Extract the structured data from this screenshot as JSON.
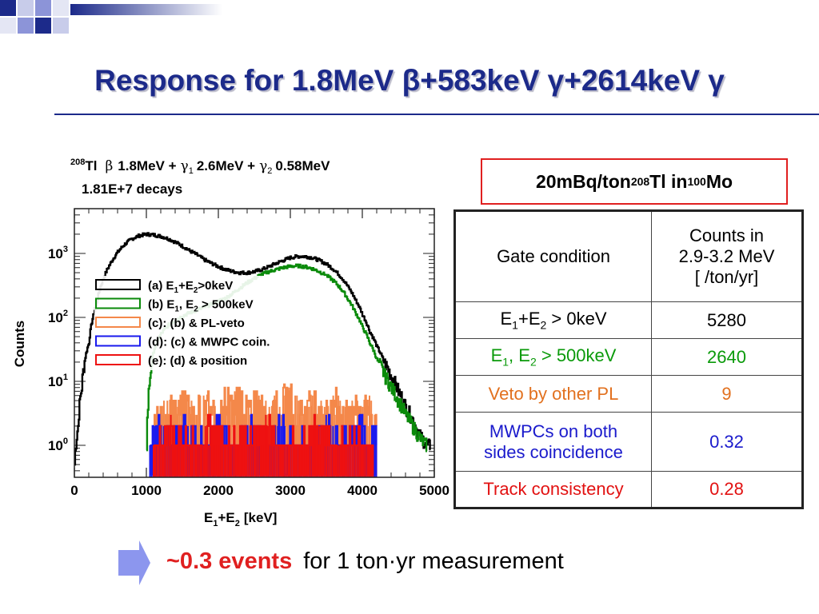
{
  "slide": {
    "title": "Response for 1.8MeV β+583keV γ+2614keV γ"
  },
  "chart_data": {
    "type": "line",
    "header_line1": {
      "iso": "208",
      "element": "Tl",
      "beta": "β",
      "beta_e": "1.8MeV +",
      "g1": "γ",
      "g1_sub": "1",
      "g1_e": "2.6MeV +",
      "g2": "γ",
      "g2_sub": "2",
      "g2_e": "0.58MeV"
    },
    "header_line2": "1.81E+7 decays",
    "xlabel_main": "E",
    "xlabel_sub1": "1",
    "xlabel_plus": "+E",
    "xlabel_sub2": "2",
    "xlabel_unit": "[keV]",
    "ylabel": "Counts",
    "xlim": [
      0,
      5000
    ],
    "ylim_log10": [
      -0.5,
      3.7
    ],
    "y_scale": "log",
    "x_ticks": [
      "0",
      "1000",
      "2000",
      "3000",
      "4000",
      "5000"
    ],
    "x_tick_values": [
      0,
      1000,
      2000,
      3000,
      4000,
      5000
    ],
    "y_ticks": [
      {
        "base": "10",
        "exp": "0",
        "value": 1
      },
      {
        "base": "10",
        "exp": "1",
        "value": 10
      },
      {
        "base": "10",
        "exp": "2",
        "value": 100
      },
      {
        "base": "10",
        "exp": "3",
        "value": 1000
      }
    ],
    "legend_placement": "upper-center",
    "series": [
      {
        "label": "(a) E1+E2>0keV",
        "color": "#000000",
        "x": [
          0,
          50,
          100,
          200,
          300,
          400,
          500,
          600,
          700,
          800,
          900,
          1000,
          1100,
          1200,
          1300,
          1400,
          1500,
          1600,
          1700,
          1800,
          1900,
          2000,
          2100,
          2200,
          2300,
          2400,
          2500,
          2600,
          2700,
          2800,
          2900,
          3000,
          3100,
          3200,
          3300,
          3400,
          3500,
          3600,
          3700,
          3800,
          3900,
          4000,
          4100,
          4200,
          4300,
          4400,
          4500,
          4600,
          4700,
          4750,
          4800,
          4850,
          4900,
          4950
        ],
        "y": [
          0.5,
          2,
          8,
          40,
          150,
          400,
          700,
          1050,
          1400,
          1700,
          1900,
          2000,
          1950,
          1850,
          1700,
          1500,
          1300,
          1100,
          950,
          800,
          700,
          620,
          560,
          520,
          500,
          500,
          520,
          560,
          620,
          700,
          780,
          860,
          900,
          900,
          860,
          780,
          680,
          560,
          430,
          300,
          190,
          110,
          60,
          35,
          20,
          12,
          7,
          4,
          2.5,
          1.8,
          1.4,
          1.2,
          1.0,
          1.0
        ]
      },
      {
        "label": "(b) E1, E2 > 500keV",
        "color": "#0a8a0a",
        "x": [
          1000,
          1020,
          1050,
          1100,
          1200,
          1300,
          1400,
          1500,
          1600,
          1700,
          1800,
          1900,
          2000,
          2100,
          2200,
          2300,
          2400,
          2500,
          2600,
          2700,
          2800,
          2900,
          3000,
          3100,
          3200,
          3300,
          3400,
          3500,
          3600,
          3700,
          3800,
          3900,
          4000,
          4100,
          4200,
          4300,
          4400,
          4500,
          4600,
          4700,
          4750,
          4800,
          4850,
          4900
        ],
        "y": [
          1,
          4,
          12,
          30,
          55,
          75,
          90,
          105,
          118,
          130,
          145,
          160,
          180,
          200,
          240,
          290,
          350,
          410,
          470,
          520,
          560,
          600,
          630,
          640,
          620,
          580,
          520,
          450,
          370,
          280,
          190,
          120,
          70,
          40,
          22,
          13,
          8,
          5,
          3,
          2,
          1.6,
          1.3,
          1.1,
          1.0
        ]
      },
      {
        "label": "(c): (b) & PL-veto",
        "color": "#f4884a",
        "x": [
          1100,
          1200,
          1300,
          1400,
          1500,
          1600,
          1700,
          1800,
          1900,
          2000,
          2100,
          2200,
          2300,
          2400,
          2500,
          2600,
          2700,
          2800,
          2900,
          3000,
          3100,
          3200,
          3300,
          3400,
          3500,
          3600,
          3700,
          3800,
          3900,
          4000,
          4100,
          4200
        ],
        "y": [
          2,
          3,
          4,
          3,
          5,
          4,
          3,
          5,
          4,
          3,
          5,
          4,
          6,
          3,
          5,
          4,
          3,
          4,
          5,
          6,
          4,
          3,
          5,
          4,
          3,
          5,
          4,
          3,
          4,
          3,
          4,
          2
        ]
      },
      {
        "label": "(d): (c) & MWPC coin.",
        "color": "#1a1aee",
        "x": [
          1050,
          1150,
          1250,
          1400,
          1550,
          1700,
          1850,
          2000,
          2150,
          2300,
          2450,
          2600,
          2750,
          2900,
          3050,
          3200,
          3350,
          3500,
          3650,
          3800,
          3950,
          4100,
          4200
        ],
        "y": [
          1,
          2,
          1,
          1,
          2,
          1,
          1,
          2,
          1,
          1,
          2,
          1,
          1,
          2,
          1,
          1,
          1,
          2,
          1,
          1,
          2,
          1,
          1
        ]
      },
      {
        "label": "(e): (d) & position",
        "color": "#ee1111",
        "x": [
          1100,
          1200,
          1300,
          1450,
          1600,
          1750,
          1900,
          2050,
          2200,
          2350,
          2500,
          2650,
          2800,
          2950,
          3100,
          3250,
          3400,
          3550,
          3700,
          3850,
          4000,
          4150
        ],
        "y": [
          1,
          1,
          2,
          1,
          1,
          1,
          2,
          1,
          1,
          1,
          1,
          2,
          1,
          1,
          1,
          1,
          2,
          1,
          1,
          1,
          1,
          1
        ]
      }
    ],
    "legend": [
      {
        "color": "#000000",
        "t1": "(a) E",
        "s1": "1",
        "t2": "+E",
        "s2": "2",
        "t3": ">0keV"
      },
      {
        "color": "#0a8a0a",
        "t1": "(b) E",
        "s1": "1",
        "t2": ", E",
        "s2": "2",
        "t3": " > 500keV"
      },
      {
        "color": "#f4884a",
        "t1": "(c): (b) & PL-veto",
        "s1": "",
        "t2": "",
        "s2": "",
        "t3": ""
      },
      {
        "color": "#1a1aee",
        "t1": "(d): (c) & MWPC coin.",
        "s1": "",
        "t2": "",
        "s2": "",
        "t3": ""
      },
      {
        "color": "#ee1111",
        "t1": "(e): (d) & position",
        "s1": "",
        "t2": "",
        "s2": "",
        "t3": ""
      }
    ]
  },
  "info_box": {
    "prefix": "20mBq/ton ",
    "iso1": "208",
    "el1": "Tl in ",
    "iso2": "100",
    "el2": "Mo"
  },
  "table": {
    "header_col1": "Gate condition",
    "header_col2": [
      "Counts in",
      "2.9-3.2 MeV",
      "[ /ton/yr]"
    ],
    "rows": [
      {
        "color": "#000000",
        "cond_a": "E",
        "cond_s1": "1",
        "cond_b": "+E",
        "cond_s2": "2",
        "cond_c": " > 0keV",
        "value": "5280"
      },
      {
        "color": "#0a9a0a",
        "cond_a": "E",
        "cond_s1": "1",
        "cond_b": ", E",
        "cond_s2": "2",
        "cond_c": " > 500keV",
        "value": "2640"
      },
      {
        "color": "#e2711f",
        "cond_a": "Veto by other PL",
        "cond_s1": "",
        "cond_b": "",
        "cond_s2": "",
        "cond_c": "",
        "value": "9"
      },
      {
        "color": "#1a1acc",
        "cond_a": "MWPCs on both",
        "cond_s1": "",
        "cond_b": "",
        "cond_s2": "",
        "cond_c": "",
        "cond_line2": "sides coincidence",
        "value": "0.32"
      },
      {
        "color": "#e21111",
        "cond_a": "Track consistency",
        "cond_s1": "",
        "cond_b": "",
        "cond_s2": "",
        "cond_c": "",
        "value": "0.28"
      }
    ]
  },
  "bottom": {
    "highlight": "~0.3 events",
    "rest": "for 1 ton·yr measurement"
  },
  "colors": {
    "title": "#1c2a8a",
    "accent_red": "#e02020",
    "arrow": "#8c96ee"
  }
}
